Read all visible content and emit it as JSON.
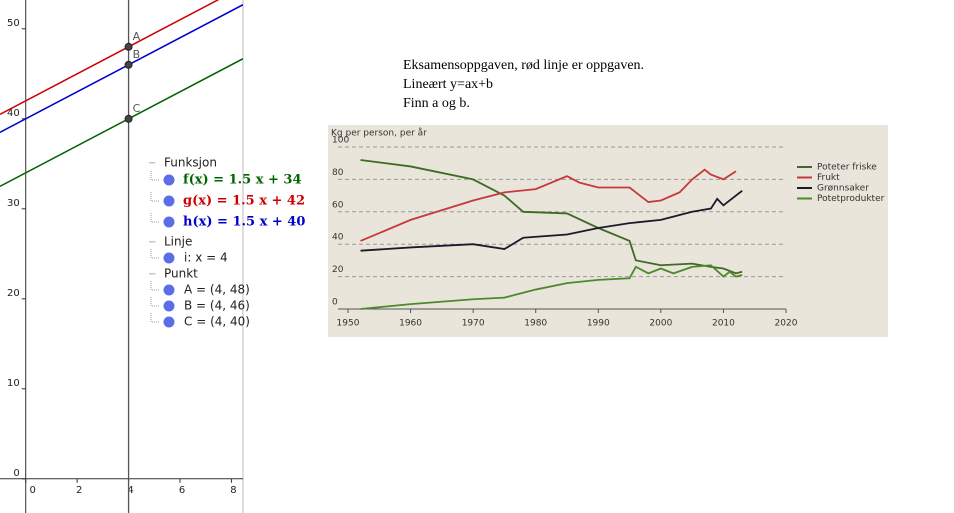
{
  "graph": {
    "xlim": [
      -1,
      8.45
    ],
    "ylim": [
      -3.8,
      53.2
    ],
    "xticks": [
      0,
      2,
      4,
      6,
      8
    ],
    "yticks": [
      0,
      10,
      20,
      30,
      40,
      50
    ],
    "functions": [
      {
        "name": "f",
        "label": "f(x) = 1.5 x + 34",
        "slope": 1.5,
        "intercept": 34,
        "color": "#006400"
      },
      {
        "name": "g",
        "label": "g(x) = 1.5 x + 42",
        "slope": 1.5,
        "intercept": 42,
        "color": "#cc0000"
      },
      {
        "name": "h",
        "label": "h(x) = 1.5 x + 40",
        "slope": 1.5,
        "intercept": 40,
        "color": "#0000cc"
      }
    ],
    "vertical_line": {
      "label": "i: x = 4",
      "x": 4
    },
    "points": [
      {
        "name": "A",
        "label": "A = (4, 48)",
        "x": 4,
        "y": 48
      },
      {
        "name": "B",
        "label": "B = (4, 46)",
        "x": 4,
        "y": 46
      },
      {
        "name": "C",
        "label": "C = (4, 40)",
        "x": 4,
        "y": 40
      }
    ]
  },
  "algebra_view": {
    "groups": [
      "Funksjon",
      "Linje",
      "Punkt"
    ]
  },
  "text_block": {
    "lines": [
      "Eksamensoppgaven, rød linje er oppgaven.",
      "Lineært y=ax+b",
      "Finn a og b."
    ]
  },
  "chart_data": {
    "type": "line",
    "title": "Kg per person, per år",
    "xlim": [
      1950,
      2020
    ],
    "xticks": [
      1950,
      1960,
      1970,
      1980,
      1990,
      2000,
      2010,
      2020
    ],
    "ylim": [
      0,
      100
    ],
    "yticks": [
      0,
      20,
      40,
      60,
      80,
      100
    ],
    "grid": true,
    "series": [
      {
        "name": "Poteter friske",
        "color": "#3d6b25",
        "x": [
          1952,
          1960,
          1970,
          1975,
          1978,
          1985,
          1990,
          1995,
          1996,
          2000,
          2005,
          2008,
          2010,
          2012,
          2013
        ],
        "values": [
          92,
          88,
          80,
          70,
          60,
          59,
          50,
          42,
          30,
          27,
          28,
          26,
          25,
          22,
          23
        ]
      },
      {
        "name": "Frukt",
        "color": "#c8383a",
        "x": [
          1952,
          1960,
          1970,
          1975,
          1980,
          1985,
          1987,
          1990,
          1995,
          1998,
          2000,
          2003,
          2005,
          2007,
          2008,
          2010,
          2012
        ],
        "values": [
          42,
          55,
          67,
          72,
          74,
          82,
          78,
          75,
          75,
          66,
          67,
          72,
          80,
          86,
          83,
          80,
          85
        ]
      },
      {
        "name": "Grønnsaker",
        "color": "#1a1a2a",
        "x": [
          1952,
          1960,
          1970,
          1975,
          1978,
          1985,
          1990,
          1995,
          2000,
          2003,
          2005,
          2008,
          2009,
          2010,
          2012,
          2013
        ],
        "values": [
          36,
          38,
          40,
          37,
          44,
          46,
          50,
          53,
          55,
          58,
          60,
          62,
          68,
          64,
          70,
          73
        ]
      },
      {
        "name": "Potetprodukter",
        "color": "#4c8a2c",
        "x": [
          1952,
          1960,
          1970,
          1975,
          1980,
          1985,
          1990,
          1995,
          1996,
          1998,
          2000,
          2002,
          2005,
          2008,
          2010,
          2011,
          2012,
          2013
        ],
        "values": [
          0,
          3,
          6,
          7,
          12,
          16,
          18,
          19,
          26,
          22,
          25,
          22,
          26,
          27,
          20,
          23,
          20,
          21
        ]
      }
    ]
  }
}
